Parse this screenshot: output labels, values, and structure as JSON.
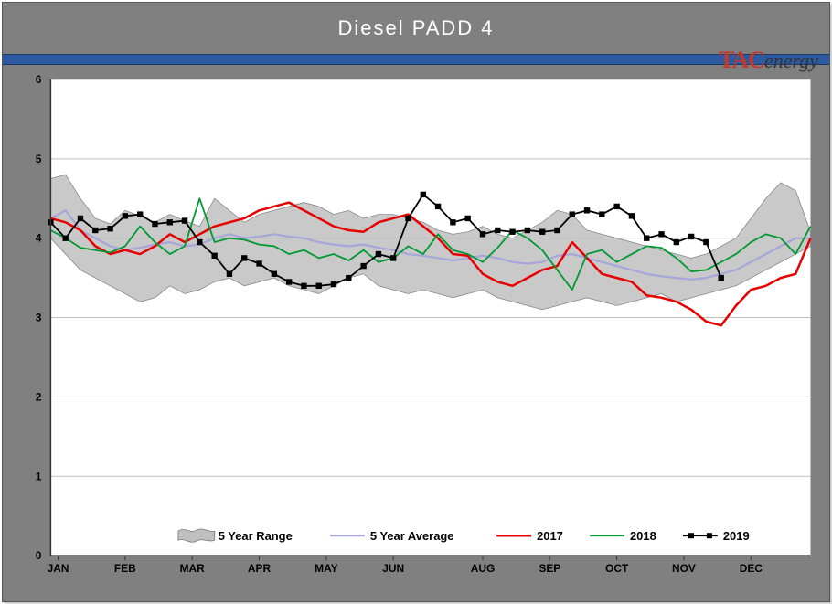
{
  "chart": {
    "title": "Diesel PADD 4",
    "logo": {
      "prefix": "TAC",
      "suffix": "energy"
    },
    "background_color": "#808080",
    "blue_strip_color": "#2c5aa0",
    "plot_bg_color": "#ffffff",
    "grid_color": "#bfbfbf",
    "axis_color": "#333333",
    "ylim": [
      0,
      6
    ],
    "ytick_step": 1,
    "yticks": [
      0,
      1,
      2,
      3,
      4,
      5,
      6
    ],
    "xtick_labels": [
      "JAN",
      "FEB",
      "MAR",
      "APR",
      "MAY",
      "JUN",
      "AUG",
      "SEP",
      "OCT",
      "NOV",
      "DEC"
    ],
    "xtick_positions": [
      0.5,
      5,
      9.5,
      14,
      18.5,
      23,
      29,
      33.5,
      38,
      42.5,
      47
    ],
    "n_weeks": 52,
    "series": {
      "range_upper": [
        4.75,
        4.8,
        4.5,
        4.25,
        4.18,
        4.35,
        4.28,
        4.2,
        4.3,
        4.22,
        4.15,
        4.5,
        4.35,
        4.2,
        4.3,
        4.35,
        4.4,
        4.45,
        4.4,
        4.3,
        4.35,
        4.25,
        4.3,
        4.3,
        4.25,
        4.2,
        4.1,
        4.05,
        4.08,
        4.15,
        4.05,
        4.0,
        4.1,
        4.2,
        4.35,
        4.3,
        4.1,
        4.05,
        4.0,
        3.95,
        3.9,
        3.85,
        3.8,
        3.75,
        3.8,
        3.9,
        4.0,
        4.25,
        4.5,
        4.7,
        4.6,
        4.08
      ],
      "range_lower": [
        4.0,
        3.8,
        3.6,
        3.5,
        3.4,
        3.3,
        3.2,
        3.25,
        3.4,
        3.3,
        3.35,
        3.45,
        3.5,
        3.4,
        3.45,
        3.5,
        3.4,
        3.35,
        3.3,
        3.4,
        3.5,
        3.55,
        3.4,
        3.35,
        3.3,
        3.35,
        3.3,
        3.25,
        3.3,
        3.35,
        3.25,
        3.2,
        3.15,
        3.1,
        3.15,
        3.2,
        3.25,
        3.2,
        3.15,
        3.2,
        3.25,
        3.3,
        3.2,
        3.25,
        3.3,
        3.35,
        3.4,
        3.5,
        3.6,
        3.7,
        3.8,
        3.9
      ],
      "avg": [
        4.25,
        4.35,
        4.1,
        4.0,
        3.9,
        3.85,
        3.88,
        3.92,
        3.95,
        3.9,
        3.92,
        4.0,
        4.05,
        4.0,
        4.02,
        4.05,
        4.02,
        4.0,
        3.95,
        3.92,
        3.9,
        3.92,
        3.88,
        3.85,
        3.8,
        3.78,
        3.75,
        3.72,
        3.75,
        3.78,
        3.75,
        3.7,
        3.68,
        3.7,
        3.78,
        3.8,
        3.75,
        3.7,
        3.65,
        3.6,
        3.55,
        3.52,
        3.5,
        3.48,
        3.5,
        3.55,
        3.6,
        3.7,
        3.8,
        3.9,
        4.0,
        4.0
      ],
      "y2017": [
        4.25,
        4.2,
        4.1,
        3.9,
        3.8,
        3.85,
        3.8,
        3.9,
        4.05,
        3.95,
        4.05,
        4.15,
        4.2,
        4.25,
        4.35,
        4.4,
        4.45,
        4.35,
        4.25,
        4.15,
        4.1,
        4.08,
        4.2,
        4.25,
        4.3,
        4.15,
        4.0,
        3.8,
        3.78,
        3.55,
        3.45,
        3.4,
        3.5,
        3.6,
        3.65,
        3.95,
        3.75,
        3.55,
        3.5,
        3.45,
        3.28,
        3.25,
        3.2,
        3.1,
        2.95,
        2.9,
        3.15,
        3.35,
        3.4,
        3.5,
        3.55,
        4.0
      ],
      "y2018": [
        4.1,
        4.0,
        3.88,
        3.85,
        3.82,
        3.9,
        4.15,
        3.95,
        3.8,
        3.9,
        4.5,
        3.95,
        4.0,
        3.98,
        3.92,
        3.9,
        3.8,
        3.85,
        3.75,
        3.8,
        3.72,
        3.85,
        3.7,
        3.75,
        3.9,
        3.8,
        4.05,
        3.85,
        3.8,
        3.7,
        3.88,
        4.1,
        4.0,
        3.85,
        3.6,
        3.35,
        3.8,
        3.85,
        3.7,
        3.8,
        3.9,
        3.88,
        3.75,
        3.58,
        3.6,
        3.7,
        3.8,
        3.95,
        4.05,
        4.0,
        3.8,
        4.15
      ],
      "y2019": [
        4.2,
        4.0,
        4.25,
        4.1,
        4.12,
        4.28,
        4.3,
        4.18,
        4.2,
        4.22,
        3.95,
        3.78,
        3.55,
        3.75,
        3.68,
        3.55,
        3.45,
        3.4,
        3.4,
        3.42,
        3.5,
        3.65,
        3.8,
        3.75,
        4.25,
        4.55,
        4.4,
        4.2,
        4.25,
        4.05,
        4.1,
        4.08,
        4.1,
        4.08,
        4.1,
        4.3,
        4.35,
        4.3,
        4.4,
        4.28,
        4.0,
        4.05,
        3.95,
        4.02,
        3.95,
        3.5
      ],
      "y2019_len": 46
    },
    "colors": {
      "range_fill": "#bfbfbf",
      "avg": "#a6a6d9",
      "y2017": "#e60000",
      "y2018": "#009933",
      "y2019": "#000000"
    },
    "line_widths": {
      "avg": 2.2,
      "y2017": 2.5,
      "y2018": 1.8,
      "y2019": 1.8
    },
    "marker_size_2019": 3.2,
    "legend": {
      "items": [
        {
          "key": "range",
          "label": "5 Year Range"
        },
        {
          "key": "avg",
          "label": "5 Year Average"
        },
        {
          "key": "y2017",
          "label": "2017"
        },
        {
          "key": "y2018",
          "label": "2018"
        },
        {
          "key": "y2019",
          "label": "2019"
        }
      ],
      "fontsize": 13
    },
    "tick_fontsize": 12,
    "title_fontsize": 22
  }
}
